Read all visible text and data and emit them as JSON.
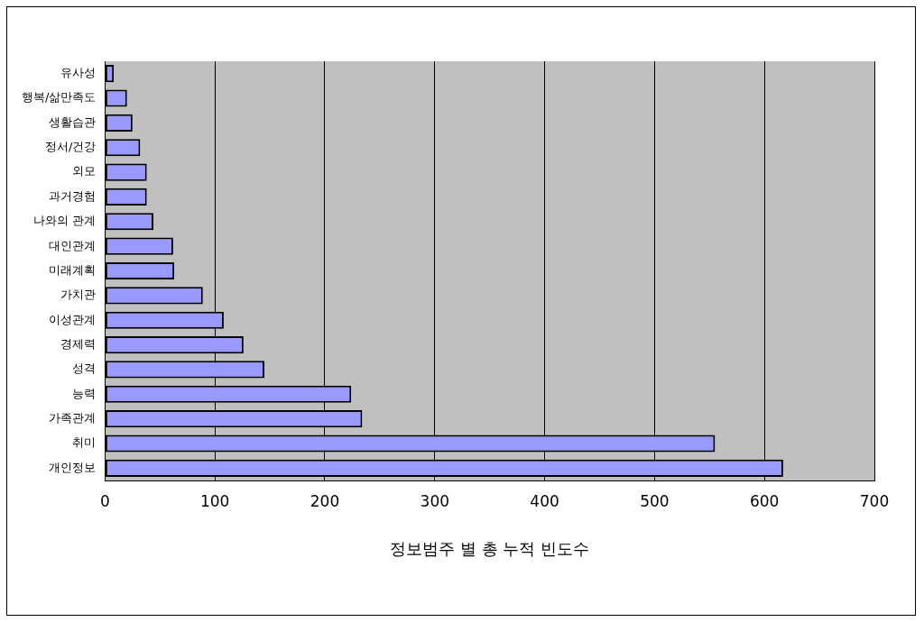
{
  "chart_data": {
    "type": "bar",
    "orientation": "horizontal",
    "xlabel": "정보범주 별 총 누적 빈도수",
    "categories": [
      "유사성",
      "행복/삶만족도",
      "생활습관",
      "정서/건강",
      "외모",
      "과거경험",
      "나와의 관계",
      "대인관계",
      "미래계획",
      "가치관",
      "이성관계",
      "경제력",
      "성격",
      "능력",
      "가족관계",
      "취미",
      "개인정보"
    ],
    "values": [
      8,
      20,
      25,
      32,
      38,
      38,
      44,
      62,
      63,
      89,
      108,
      126,
      145,
      224,
      234,
      555,
      617
    ],
    "color": "#9999ff",
    "xlim": [
      0,
      700
    ],
    "xticks": [
      0,
      100,
      200,
      300,
      400,
      500,
      600,
      700
    ],
    "grid": "x"
  }
}
